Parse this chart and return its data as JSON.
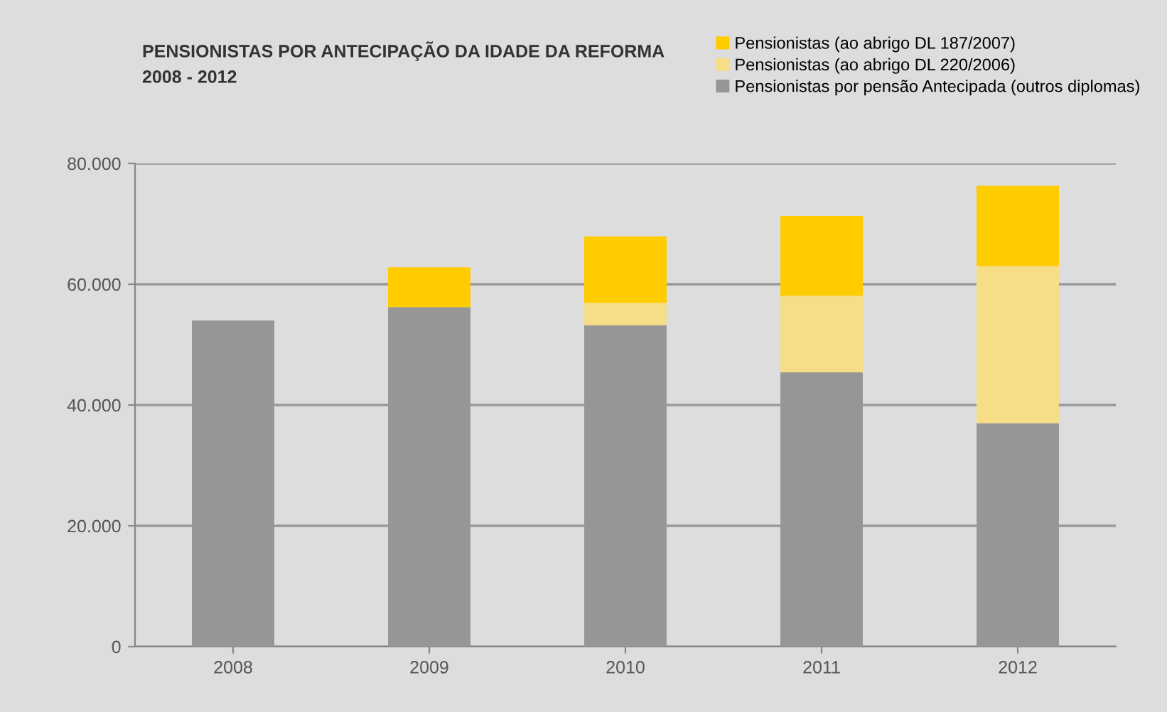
{
  "chart_data": {
    "type": "bar",
    "title": "PENSIONISTAS POR ANTECIPAÇÃO DA IDADE DA REFORMA\n2008 - 2012",
    "categories": [
      "2008",
      "2009",
      "2010",
      "2011",
      "2012"
    ],
    "stacked": true,
    "series": [
      {
        "name": "Pensionistas por pensão Antecipada (outros diplomas)",
        "color": "#969696",
        "values": [
          54000,
          56200,
          53200,
          45400,
          37000
        ]
      },
      {
        "name": "Pensionistas (ao abrigo DL 220/2006)",
        "color": "#f6dd87",
        "values": [
          null,
          null,
          3700,
          12700,
          26000
        ]
      },
      {
        "name": "Pensionistas (ao abrigo DL 187/2007)",
        "color": "#ffcc00",
        "values": [
          null,
          6600,
          11000,
          13200,
          13300
        ]
      }
    ],
    "ylim": [
      0,
      80000
    ],
    "yticks": [
      0,
      {
        "value": 20000,
        "label": "20.000"
      },
      {
        "value": 40000,
        "label": "40.000"
      },
      {
        "value": 60000,
        "label": "60.000"
      },
      {
        "value": 80000,
        "label": "80.000"
      }
    ],
    "grid": "y",
    "legend": "top right"
  }
}
